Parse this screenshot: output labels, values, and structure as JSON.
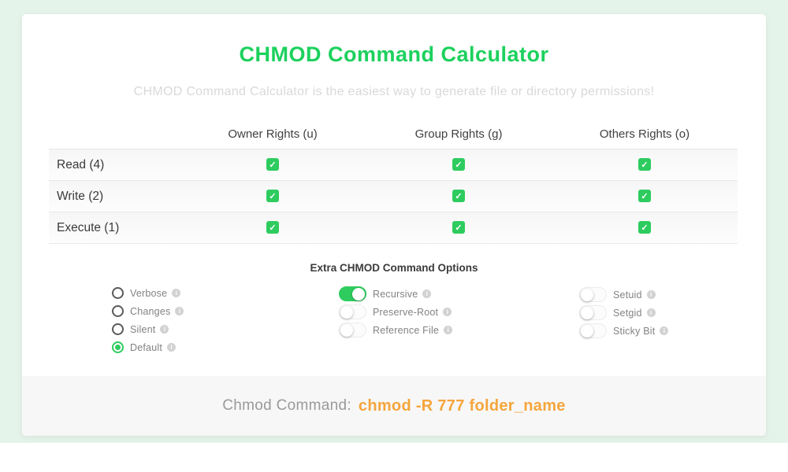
{
  "colors": {
    "background_mint": "#e5f4ea",
    "title_green": "#1cd15d",
    "accent_green": "#2ecc5f",
    "command_orange": "#f5a53d",
    "footer_gray": "#f7f7f7"
  },
  "icons": {
    "check": "✓",
    "info": "i"
  },
  "header": {
    "title": "CHMOD Command Calculator",
    "subtitle": "CHMOD Command Calculator is the easiest way to generate file or directory permissions!"
  },
  "permissions_table": {
    "columns": [
      "Owner Rights (u)",
      "Group Rights (g)",
      "Others Rights (o)"
    ],
    "rows": [
      {
        "label": "Read (4)",
        "owner": true,
        "group": true,
        "others": true
      },
      {
        "label": "Write (2)",
        "owner": true,
        "group": true,
        "others": true
      },
      {
        "label": "Execute (1)",
        "owner": true,
        "group": true,
        "others": true
      }
    ]
  },
  "extra_options": {
    "title": "Extra CHMOD Command Options",
    "radios": [
      {
        "label": "Verbose",
        "selected": false
      },
      {
        "label": "Changes",
        "selected": false
      },
      {
        "label": "Silent",
        "selected": false
      },
      {
        "label": "Default",
        "selected": true
      }
    ],
    "middle_toggles": [
      {
        "label": "Recursive",
        "on": true
      },
      {
        "label": "Preserve-Root",
        "on": false
      },
      {
        "label": "Reference File",
        "on": false
      }
    ],
    "right_toggles": [
      {
        "label": "Setuid",
        "on": false
      },
      {
        "label": "Setgid",
        "on": false
      },
      {
        "label": "Sticky Bit",
        "on": false
      }
    ]
  },
  "output": {
    "label": "Chmod Command:",
    "command": "chmod -R 777 folder_name"
  }
}
